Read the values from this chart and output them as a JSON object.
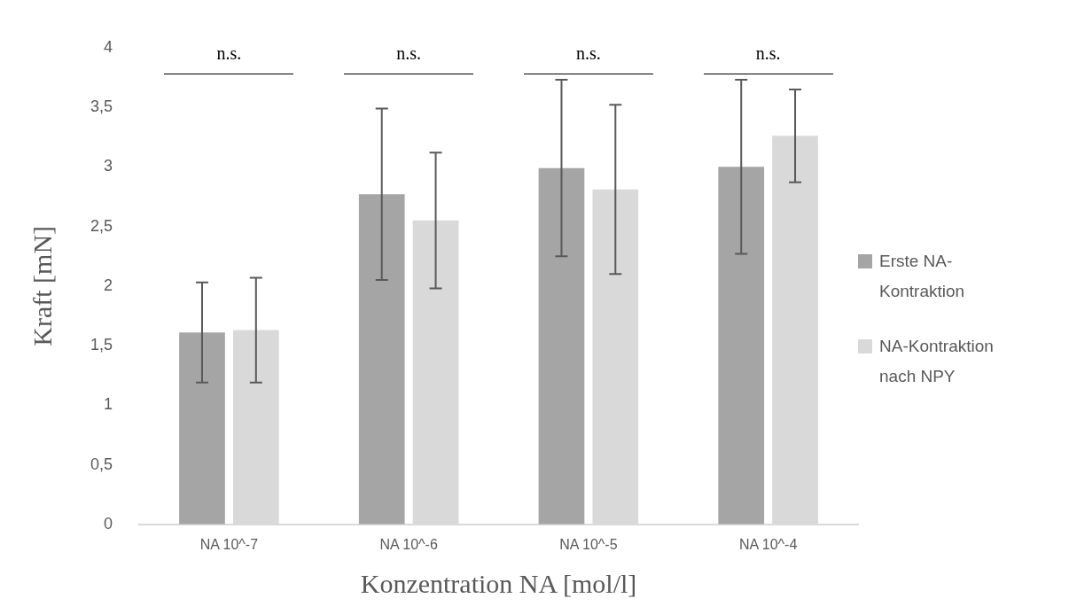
{
  "chart_data": {
    "type": "bar",
    "xlabel": "Konzentration NA [mol/l]",
    "ylabel": "Kraft [mN]",
    "categories": [
      "NA 10^-7",
      "NA 10^-6",
      "NA 10^-5",
      "NA 10^-4"
    ],
    "series": [
      {
        "name": "Erste NA-Kontraktion",
        "color": "#a5a5a5",
        "values": [
          1.61,
          2.77,
          2.99,
          3.0
        ],
        "errors": [
          0.42,
          0.72,
          0.74,
          0.73
        ]
      },
      {
        "name": "NA-Kontraktion nach NPY",
        "color": "#d9d9d9",
        "values": [
          1.63,
          2.55,
          2.81,
          3.26
        ],
        "errors": [
          0.44,
          0.57,
          0.71,
          0.39
        ]
      }
    ],
    "ylim": [
      0,
      4
    ],
    "yticks": [
      0,
      {
        "value": 0.5,
        "label": "0,5"
      },
      1,
      {
        "value": 1.5,
        "label": "1,5"
      },
      2,
      {
        "value": 2.5,
        "label": "2,5"
      },
      3,
      {
        "value": 3.5,
        "label": "3,5"
      },
      4
    ],
    "annotations": [
      "n.s.",
      "n.s.",
      "n.s.",
      "n.s."
    ],
    "grid": false,
    "legend": "right"
  }
}
